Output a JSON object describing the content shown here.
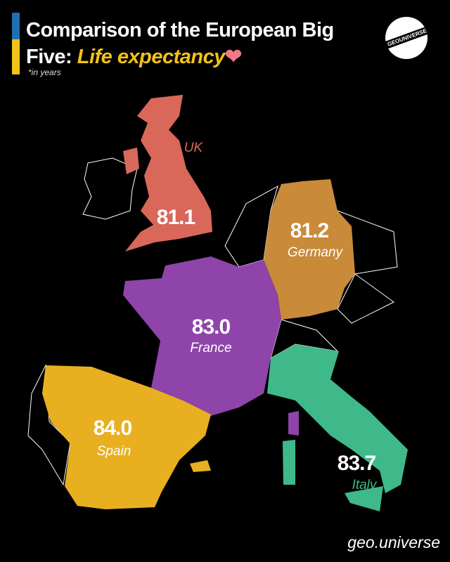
{
  "header": {
    "title_line1": "Comparison of the European Big",
    "title_prefix": "Five: ",
    "title_highlight": "Life expectancy",
    "subtitle": "*in years",
    "logo_text": "GEOUNIVERSE"
  },
  "countries": [
    {
      "name": "UK",
      "value": "81.1",
      "color": "#d9685a"
    },
    {
      "name": "Germany",
      "value": "81.2",
      "color": "#c98a3a"
    },
    {
      "name": "France",
      "value": "83.0",
      "color": "#8e44a8"
    },
    {
      "name": "Spain",
      "value": "84.0",
      "color": "#e8b020"
    },
    {
      "name": "Italy",
      "value": "83.7",
      "color": "#3fb98a"
    }
  ],
  "footer": {
    "handle": "geo.universe"
  }
}
